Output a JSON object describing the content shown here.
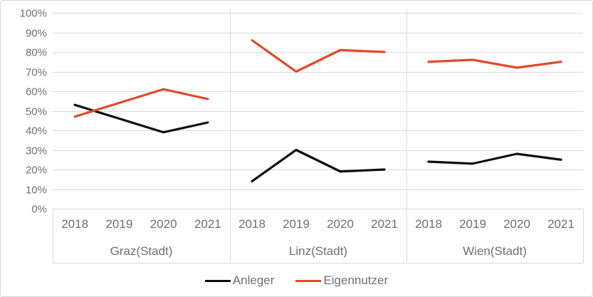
{
  "chart_data": {
    "type": "line",
    "title": "",
    "xlabel": "",
    "ylabel": "",
    "ylim": [
      0,
      100
    ],
    "grid": true,
    "legend_position": "bottom",
    "y_tick_labels": [
      "0%",
      "10%",
      "20%",
      "30%",
      "40%",
      "50%",
      "60%",
      "70%",
      "80%",
      "90%",
      "100%"
    ],
    "categories": [
      "2018",
      "2019",
      "2020",
      "2021"
    ],
    "panels": [
      {
        "label": "Graz(Stadt)",
        "series": [
          {
            "name": "Anleger",
            "values": [
              53,
              46,
              39,
              44
            ]
          },
          {
            "name": "Eigennutzer",
            "values": [
              47,
              54,
              61,
              56
            ]
          }
        ]
      },
      {
        "label": "Linz(Stadt)",
        "series": [
          {
            "name": "Anleger",
            "values": [
              14,
              30,
              19,
              20
            ]
          },
          {
            "name": "Eigennutzer",
            "values": [
              86,
              70,
              81,
              80
            ]
          }
        ]
      },
      {
        "label": "Wien(Stadt)",
        "series": [
          {
            "name": "Anleger",
            "values": [
              24,
              23,
              28,
              25
            ]
          },
          {
            "name": "Eigennutzer",
            "values": [
              75,
              76,
              72,
              75
            ]
          }
        ]
      }
    ],
    "legend": [
      {
        "label": "Anleger",
        "color": "#0d0d0d"
      },
      {
        "label": "Eigennutzer",
        "color": "#e04a2b"
      }
    ],
    "colors": {
      "grid": "#d9d9d9",
      "axis_text": "#6f6f6f",
      "frame_border": "#d8d8d8"
    }
  }
}
